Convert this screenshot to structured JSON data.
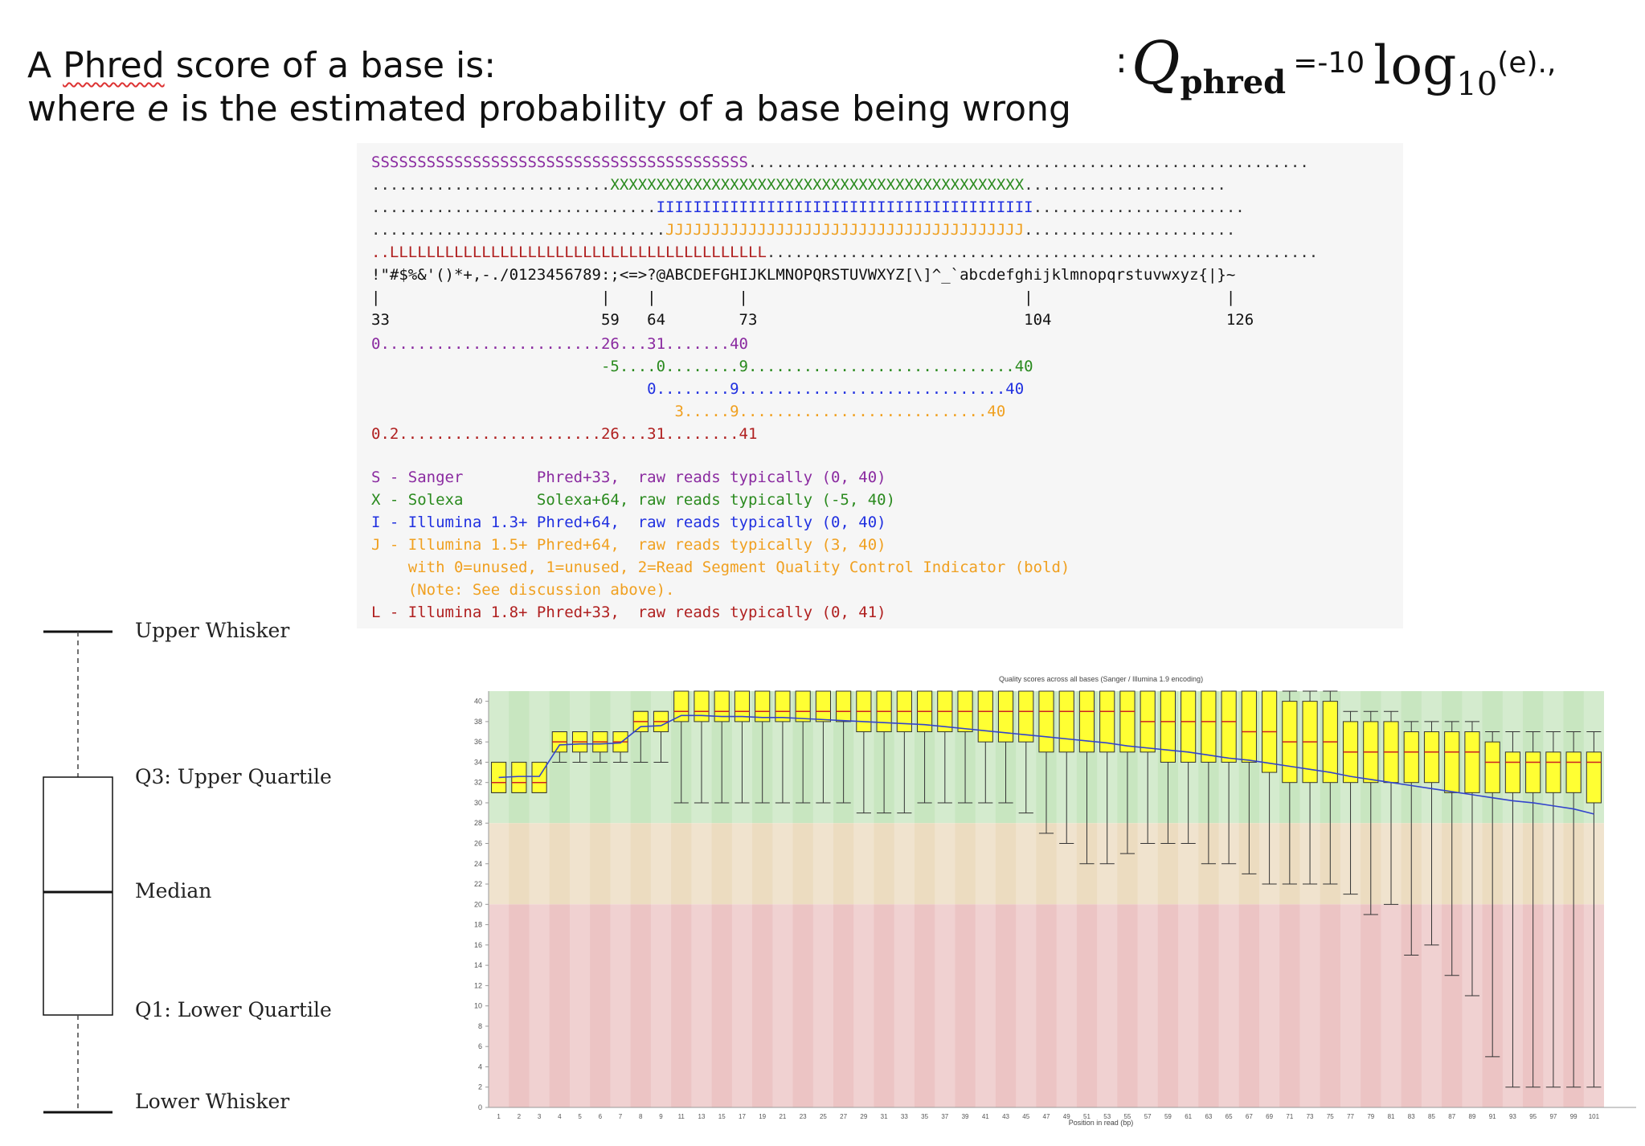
{
  "header": {
    "line1_prefix": "A ",
    "line1_word": "Phred",
    "line1_suffix": " score of a base is:",
    "line2_prefix": "where ",
    "line2_italic": "e",
    "line2_suffix": " is the estimated probability of a base being wrong"
  },
  "formula": {
    "colon": ":",
    "q": "Q",
    "q_sub": "phred",
    "equals": "=-10",
    "log": "log",
    "log_sub": "10",
    "arg": "(e).",
    "trailing": ","
  },
  "encoding": {
    "ascii_rows": {
      "S_line": [
        {
          "text": "SSSSSSSSSSSSSSSSSSSSSSSSSSSSSSSSSSSSSSSSS",
          "cls": "sanger"
        },
        {
          "text": ".............................................................",
          "cls": "dots"
        }
      ],
      "X_line": [
        {
          "text": "..........................",
          "cls": "dots"
        },
        {
          "text": "XXXXXXXXXXXXXXXXXXXXXXXXXXXXXXXXXXXXXXXXXXXXX",
          "cls": "solexa"
        },
        {
          "text": "......................",
          "cls": "dots"
        }
      ],
      "I_line": [
        {
          "text": "...............................",
          "cls": "dots"
        },
        {
          "text": "IIIIIIIIIIIIIIIIIIIIIIIIIIIIIIIIIIIIIIIII",
          "cls": "ill13"
        },
        {
          "text": ".......................",
          "cls": "dots"
        }
      ],
      "J_line": [
        {
          "text": "................................",
          "cls": "dots"
        },
        {
          "text": "JJJJJJJJJJJJJJJJJJJJJJJJJJJJJJJJJJJJJJJ",
          "cls": "ill15"
        },
        {
          "text": ".......................",
          "cls": "dots"
        }
      ],
      "L_line": [
        {
          "text": "..",
          "cls": "ill18"
        },
        {
          "text": "LLLLLLLLLLLLLLLLLLLLLLLLLLLLLLLLLLLLLLLLL",
          "cls": "ill18"
        },
        {
          "text": "............................................................",
          "cls": "dots"
        }
      ],
      "ascii_chars": "!\"#$%&'()*+,-./0123456789:;<=>?@ABCDEFGHIJKLMNOPQRSTUVWXYZ[\\]^_`abcdefghijklmnopqrstuvwxyz{|}~",
      "tick_marks": "|                        |    |         |                              |                     |",
      "tick_values": "33                       59   64        73                             104                   126"
    },
    "score_rows": [
      {
        "text": "0........................26...31.......40",
        "cls": "sanger"
      },
      {
        "text": "                         -5....0........9.............................40",
        "cls": "solexa"
      },
      {
        "text": "                              0........9.............................40",
        "cls": "ill13"
      },
      {
        "text": "                                 3.....9...........................40",
        "cls": "ill15"
      },
      {
        "text": "0.2......................26...31........41",
        "cls": "ill18"
      }
    ],
    "legend": [
      {
        "text": "S - Sanger        Phred+33,  raw reads typically (0, 40)",
        "cls": "sanger"
      },
      {
        "text": "X - Solexa        Solexa+64, raw reads typically (-5, 40)",
        "cls": "solexa"
      },
      {
        "text": "I - Illumina 1.3+ Phred+64,  raw reads typically (0, 40)",
        "cls": "ill13"
      },
      {
        "text": "J - Illumina 1.5+ Phred+64,  raw reads typically (3, 40)",
        "cls": "ill15"
      },
      {
        "text": "    with 0=unused, 1=unused, 2=Read Segment Quality Control Indicator (bold)",
        "cls": "ill15"
      },
      {
        "text": "    (Note: See discussion above).",
        "cls": "ill15"
      },
      {
        "text": "L - Illumina 1.8+ Phred+33,  raw reads typically (0, 41)",
        "cls": "ill18"
      }
    ]
  },
  "boxplot_legend": {
    "upper_whisker": "Upper Whisker",
    "q3": "Q3: Upper Quartile",
    "median": "Median",
    "q1": "Q1: Lower Quartile",
    "lower_whisker": "Lower Whisker"
  },
  "chart_data": {
    "type": "boxplot",
    "title": "Quality scores across all bases (Sanger / Illumina 1.9 encoding)",
    "xlabel": "Position in read (bp)",
    "ylabel": "",
    "ylim": [
      0,
      41
    ],
    "yticks": [
      0,
      2,
      4,
      6,
      8,
      10,
      12,
      14,
      16,
      18,
      20,
      22,
      24,
      26,
      28,
      30,
      32,
      34,
      36,
      38,
      40
    ],
    "xtick_labels": [
      "1",
      "2",
      "3",
      "4",
      "5",
      "6",
      "7",
      "8",
      "9",
      "11",
      "13",
      "15",
      "17",
      "19",
      "21",
      "23",
      "25",
      "27",
      "29",
      "31",
      "33",
      "35",
      "37",
      "39",
      "41",
      "43",
      "45",
      "47",
      "49",
      "51",
      "53",
      "55",
      "57",
      "59",
      "61",
      "63",
      "65",
      "67",
      "69",
      "71",
      "73",
      "75",
      "77",
      "79",
      "81",
      "83",
      "85",
      "87",
      "89",
      "91",
      "93",
      "95",
      "97",
      "99",
      "101"
    ],
    "zones": [
      {
        "from": 28,
        "to": 41,
        "color": "#c8e6c0"
      },
      {
        "from": 20,
        "to": 28,
        "color": "#ecdcc0"
      },
      {
        "from": 0,
        "to": 20,
        "color": "#ecc4c4"
      }
    ],
    "box_color": "#ffff33",
    "median_color": "#cc2222",
    "mean_line_color": "#3344cc",
    "positions": [
      "1",
      "2",
      "3",
      "4",
      "5",
      "6",
      "7",
      "8",
      "9",
      "10-11",
      "12-13",
      "14-15",
      "16-17",
      "18-19",
      "20-21",
      "22-23",
      "24-25",
      "26-27",
      "28-29",
      "30-31",
      "32-33",
      "34-35",
      "36-37",
      "38-39",
      "40-41",
      "42-43",
      "44-45",
      "46-47",
      "48-49",
      "50-51",
      "52-53",
      "54-55",
      "56-57",
      "58-59",
      "60-61",
      "62-63",
      "64-65",
      "66-67",
      "68-69",
      "70-71",
      "72-73",
      "74-75",
      "76-77",
      "78-79",
      "80-81",
      "82-83",
      "84-85",
      "86-87",
      "88-89",
      "90-91",
      "92-93",
      "94-95",
      "96-97",
      "98-99",
      "100-101"
    ],
    "boxes": [
      {
        "pos": "1",
        "lw": 31,
        "q1": 31,
        "median": 32,
        "q3": 34,
        "uw": 34,
        "mean": 32.5
      },
      {
        "pos": "2",
        "lw": 31,
        "q1": 31,
        "median": 32,
        "q3": 34,
        "uw": 34,
        "mean": 32.6
      },
      {
        "pos": "3",
        "lw": 31,
        "q1": 31,
        "median": 32,
        "q3": 34,
        "uw": 34,
        "mean": 32.6
      },
      {
        "pos": "4",
        "lw": 34,
        "q1": 35,
        "median": 36,
        "q3": 37,
        "uw": 37,
        "mean": 35.7
      },
      {
        "pos": "5",
        "lw": 34,
        "q1": 35,
        "median": 36,
        "q3": 37,
        "uw": 37,
        "mean": 35.8
      },
      {
        "pos": "6",
        "lw": 34,
        "q1": 35,
        "median": 36,
        "q3": 37,
        "uw": 37,
        "mean": 35.8
      },
      {
        "pos": "7",
        "lw": 34,
        "q1": 35,
        "median": 36,
        "q3": 37,
        "uw": 37,
        "mean": 35.9
      },
      {
        "pos": "8",
        "lw": 34,
        "q1": 37,
        "median": 38,
        "q3": 39,
        "uw": 39,
        "mean": 37.5
      },
      {
        "pos": "9",
        "lw": 34,
        "q1": 37,
        "median": 38,
        "q3": 39,
        "uw": 39,
        "mean": 37.6
      },
      {
        "pos": "10-11",
        "lw": 30,
        "q1": 38,
        "median": 39,
        "q3": 41,
        "uw": 41,
        "mean": 38.6
      },
      {
        "pos": "12-13",
        "lw": 30,
        "q1": 38,
        "median": 39,
        "q3": 41,
        "uw": 41,
        "mean": 38.6
      },
      {
        "pos": "14-15",
        "lw": 30,
        "q1": 38,
        "median": 39,
        "q3": 41,
        "uw": 41,
        "mean": 38.5
      },
      {
        "pos": "16-17",
        "lw": 30,
        "q1": 38,
        "median": 39,
        "q3": 41,
        "uw": 41,
        "mean": 38.5
      },
      {
        "pos": "18-19",
        "lw": 30,
        "q1": 38,
        "median": 39,
        "q3": 41,
        "uw": 41,
        "mean": 38.4
      },
      {
        "pos": "20-21",
        "lw": 30,
        "q1": 38,
        "median": 39,
        "q3": 41,
        "uw": 41,
        "mean": 38.4
      },
      {
        "pos": "22-23",
        "lw": 30,
        "q1": 38,
        "median": 39,
        "q3": 41,
        "uw": 41,
        "mean": 38.3
      },
      {
        "pos": "24-25",
        "lw": 30,
        "q1": 38,
        "median": 39,
        "q3": 41,
        "uw": 41,
        "mean": 38.2
      },
      {
        "pos": "26-27",
        "lw": 30,
        "q1": 38,
        "median": 39,
        "q3": 41,
        "uw": 41,
        "mean": 38.1
      },
      {
        "pos": "28-29",
        "lw": 29,
        "q1": 37,
        "median": 39,
        "q3": 41,
        "uw": 41,
        "mean": 38.0
      },
      {
        "pos": "30-31",
        "lw": 29,
        "q1": 37,
        "median": 39,
        "q3": 41,
        "uw": 41,
        "mean": 37.9
      },
      {
        "pos": "32-33",
        "lw": 29,
        "q1": 37,
        "median": 39,
        "q3": 41,
        "uw": 41,
        "mean": 37.8
      },
      {
        "pos": "34-35",
        "lw": 30,
        "q1": 37,
        "median": 39,
        "q3": 41,
        "uw": 41,
        "mean": 37.7
      },
      {
        "pos": "36-37",
        "lw": 30,
        "q1": 37,
        "median": 39,
        "q3": 41,
        "uw": 41,
        "mean": 37.5
      },
      {
        "pos": "38-39",
        "lw": 30,
        "q1": 37,
        "median": 39,
        "q3": 41,
        "uw": 41,
        "mean": 37.3
      },
      {
        "pos": "40-41",
        "lw": 30,
        "q1": 36,
        "median": 39,
        "q3": 41,
        "uw": 41,
        "mean": 37.1
      },
      {
        "pos": "42-43",
        "lw": 30,
        "q1": 36,
        "median": 39,
        "q3": 41,
        "uw": 41,
        "mean": 36.9
      },
      {
        "pos": "44-45",
        "lw": 29,
        "q1": 36,
        "median": 39,
        "q3": 41,
        "uw": 41,
        "mean": 36.7
      },
      {
        "pos": "46-47",
        "lw": 27,
        "q1": 35,
        "median": 39,
        "q3": 41,
        "uw": 41,
        "mean": 36.5
      },
      {
        "pos": "48-49",
        "lw": 26,
        "q1": 35,
        "median": 39,
        "q3": 41,
        "uw": 41,
        "mean": 36.3
      },
      {
        "pos": "50-51",
        "lw": 24,
        "q1": 35,
        "median": 39,
        "q3": 41,
        "uw": 41,
        "mean": 36.1
      },
      {
        "pos": "52-53",
        "lw": 24,
        "q1": 35,
        "median": 39,
        "q3": 41,
        "uw": 41,
        "mean": 35.9
      },
      {
        "pos": "54-55",
        "lw": 25,
        "q1": 35,
        "median": 39,
        "q3": 41,
        "uw": 41,
        "mean": 35.6
      },
      {
        "pos": "56-57",
        "lw": 26,
        "q1": 35,
        "median": 38,
        "q3": 41,
        "uw": 41,
        "mean": 35.4
      },
      {
        "pos": "58-59",
        "lw": 26,
        "q1": 34,
        "median": 38,
        "q3": 41,
        "uw": 41,
        "mean": 35.2
      },
      {
        "pos": "60-61",
        "lw": 26,
        "q1": 34,
        "median": 38,
        "q3": 41,
        "uw": 41,
        "mean": 35.0
      },
      {
        "pos": "62-63",
        "lw": 24,
        "q1": 34,
        "median": 38,
        "q3": 41,
        "uw": 41,
        "mean": 34.7
      },
      {
        "pos": "64-65",
        "lw": 24,
        "q1": 34,
        "median": 38,
        "q3": 41,
        "uw": 41,
        "mean": 34.4
      },
      {
        "pos": "66-67",
        "lw": 23,
        "q1": 34,
        "median": 37,
        "q3": 41,
        "uw": 41,
        "mean": 34.2
      },
      {
        "pos": "68-69",
        "lw": 22,
        "q1": 33,
        "median": 37,
        "q3": 41,
        "uw": 41,
        "mean": 33.9
      },
      {
        "pos": "70-71",
        "lw": 22,
        "q1": 32,
        "median": 36,
        "q3": 40,
        "uw": 41,
        "mean": 33.6
      },
      {
        "pos": "72-73",
        "lw": 22,
        "q1": 32,
        "median": 36,
        "q3": 40,
        "uw": 41,
        "mean": 33.3
      },
      {
        "pos": "74-75",
        "lw": 22,
        "q1": 32,
        "median": 36,
        "q3": 40,
        "uw": 41,
        "mean": 33.0
      },
      {
        "pos": "76-77",
        "lw": 21,
        "q1": 32,
        "median": 35,
        "q3": 38,
        "uw": 39,
        "mean": 32.6
      },
      {
        "pos": "78-79",
        "lw": 19,
        "q1": 32,
        "median": 35,
        "q3": 38,
        "uw": 39,
        "mean": 32.3
      },
      {
        "pos": "80-81",
        "lw": 20,
        "q1": 32,
        "median": 35,
        "q3": 38,
        "uw": 39,
        "mean": 32.0
      },
      {
        "pos": "82-83",
        "lw": 15,
        "q1": 32,
        "median": 35,
        "q3": 37,
        "uw": 38,
        "mean": 31.7
      },
      {
        "pos": "84-85",
        "lw": 16,
        "q1": 32,
        "median": 35,
        "q3": 37,
        "uw": 38,
        "mean": 31.4
      },
      {
        "pos": "86-87",
        "lw": 13,
        "q1": 31,
        "median": 35,
        "q3": 37,
        "uw": 38,
        "mean": 31.1
      },
      {
        "pos": "88-89",
        "lw": 11,
        "q1": 31,
        "median": 35,
        "q3": 37,
        "uw": 38,
        "mean": 30.8
      },
      {
        "pos": "90-91",
        "lw": 5,
        "q1": 31,
        "median": 34,
        "q3": 36,
        "uw": 37,
        "mean": 30.5
      },
      {
        "pos": "92-93",
        "lw": 2,
        "q1": 31,
        "median": 34,
        "q3": 35,
        "uw": 37,
        "mean": 30.2
      },
      {
        "pos": "94-95",
        "lw": 2,
        "q1": 31,
        "median": 34,
        "q3": 35,
        "uw": 37,
        "mean": 30.0
      },
      {
        "pos": "96-97",
        "lw": 2,
        "q1": 31,
        "median": 34,
        "q3": 35,
        "uw": 37,
        "mean": 29.7
      },
      {
        "pos": "98-99",
        "lw": 2,
        "q1": 31,
        "median": 34,
        "q3": 35,
        "uw": 37,
        "mean": 29.4
      },
      {
        "pos": "100-101",
        "lw": 2,
        "q1": 30,
        "median": 34,
        "q3": 35,
        "uw": 37,
        "mean": 28.9
      }
    ]
  }
}
